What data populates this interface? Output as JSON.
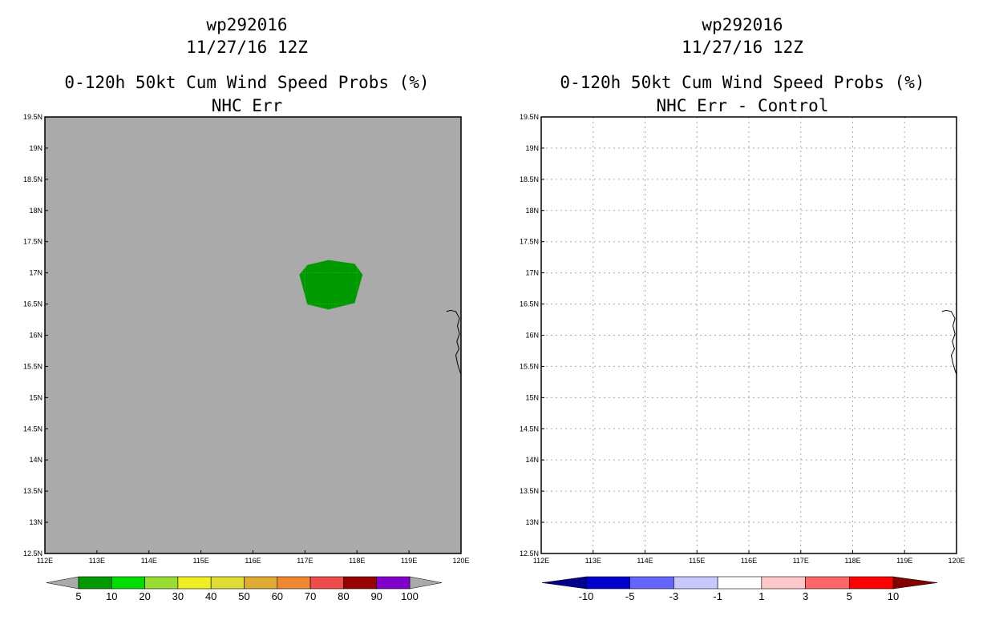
{
  "chart_data": [
    {
      "type": "heatmap",
      "title": "wp292016",
      "subtitle": "11/27/16 12Z",
      "product": "0-120h 50kt Cum Wind Speed Probs (%)",
      "panel_label": "NHC Err",
      "background_color": "#aaaaaa",
      "lon_range": [
        112,
        120
      ],
      "lat_range": [
        12.5,
        19.5
      ],
      "x_ticks": [
        "112E",
        "113E",
        "114E",
        "115E",
        "116E",
        "117E",
        "118E",
        "119E",
        "120E"
      ],
      "y_ticks": [
        "12.5N",
        "13N",
        "13.5N",
        "14N",
        "14.5N",
        "15N",
        "15.5N",
        "16N",
        "16.5N",
        "17N",
        "17.5N",
        "18N",
        "18.5N",
        "19N",
        "19.5N"
      ],
      "grid": false,
      "regions": [
        {
          "label": "5-10%",
          "color": "#009900",
          "lonlat": [
            [
              116.9,
              16.97
            ],
            [
              117.05,
              17.12
            ],
            [
              117.45,
              17.2
            ],
            [
              117.95,
              17.14
            ],
            [
              118.1,
              16.97
            ],
            [
              117.95,
              16.52
            ],
            [
              117.45,
              16.42
            ],
            [
              117.05,
              16.5
            ],
            [
              116.9,
              16.97
            ]
          ]
        }
      ],
      "colorbar": {
        "labels": [
          "5",
          "10",
          "20",
          "30",
          "40",
          "50",
          "60",
          "70",
          "80",
          "90",
          "100"
        ],
        "colors": [
          "#009900",
          "#00dd00",
          "#99dd33",
          "#eeee22",
          "#dddd33",
          "#e0ab33",
          "#ef8833",
          "#ef4c4c",
          "#990000",
          "#8000cc"
        ],
        "under_color": "#aaaaaa",
        "over_color": "#aaaaaa"
      }
    },
    {
      "type": "heatmap",
      "title": "wp292016",
      "subtitle": "11/27/16 12Z",
      "product": "0-120h 50kt Cum Wind Speed Probs (%)",
      "panel_label": "NHC Err - Control",
      "background_color": "#ffffff",
      "lon_range": [
        112,
        120
      ],
      "lat_range": [
        12.5,
        19.5
      ],
      "x_ticks": [
        "112E",
        "113E",
        "114E",
        "115E",
        "116E",
        "117E",
        "118E",
        "119E",
        "120E"
      ],
      "y_ticks": [
        "12.5N",
        "13N",
        "13.5N",
        "14N",
        "14.5N",
        "15N",
        "15.5N",
        "16N",
        "16.5N",
        "17N",
        "17.5N",
        "18N",
        "18.5N",
        "19N",
        "19.5N"
      ],
      "grid": true,
      "regions": [],
      "colorbar": {
        "labels": [
          "-10",
          "-5",
          "-3",
          "-1",
          "1",
          "3",
          "5",
          "10"
        ],
        "colors": [
          "#0000cc",
          "#6666ff",
          "#c8c8ff",
          "#ffffff",
          "#ffc8c8",
          "#ff6666",
          "#ff0000"
        ],
        "under_color": "#00008c",
        "over_color": "#800000"
      }
    }
  ],
  "coastline": [
    [
      119.72,
      16.38
    ],
    [
      119.8,
      16.4
    ],
    [
      119.9,
      16.38
    ],
    [
      119.97,
      16.27
    ],
    [
      119.93,
      16.15
    ],
    [
      119.97,
      16.02
    ],
    [
      119.92,
      15.9
    ],
    [
      119.96,
      15.78
    ],
    [
      119.9,
      15.68
    ],
    [
      119.93,
      15.55
    ],
    [
      119.97,
      15.44
    ],
    [
      120.0,
      15.37
    ]
  ]
}
